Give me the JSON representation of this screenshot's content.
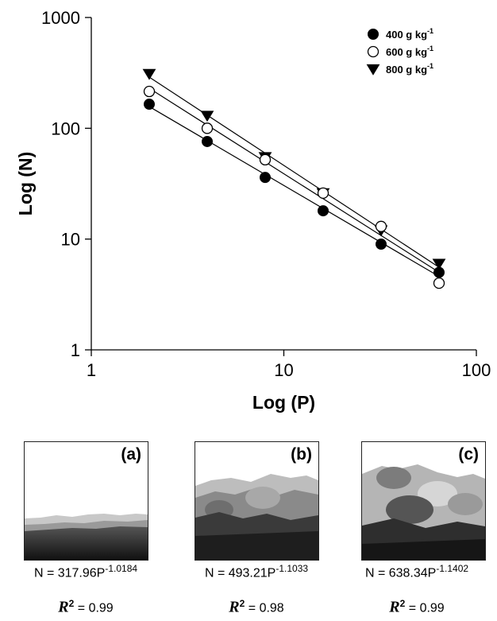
{
  "chart_data": {
    "type": "scatter",
    "xlabel": "Log (P)",
    "ylabel": "Log (N)",
    "x_scale": "log",
    "y_scale": "log",
    "xlim": [
      1,
      100
    ],
    "ylim": [
      1,
      1000
    ],
    "x_ticks": [
      "1",
      "10",
      "100"
    ],
    "y_ticks": [
      "1",
      "10",
      "100",
      "1000"
    ],
    "grid": false,
    "legend_position": "top-right",
    "series": [
      {
        "name": "400 g kg-1",
        "name_base": "400 g kg",
        "name_sup": "-1",
        "marker": "filled-circle",
        "x": [
          2,
          4,
          8,
          16,
          32,
          64
        ],
        "y": [
          165,
          76,
          36,
          18,
          9,
          5
        ],
        "fit": {
          "a": 317.96,
          "b": -1.0184
        }
      },
      {
        "name": "600 g kg-1",
        "name_base": "600 g kg",
        "name_sup": "-1",
        "marker": "open-circle",
        "x": [
          2,
          4,
          8,
          16,
          32,
          64
        ],
        "y": [
          215,
          100,
          52,
          26,
          13,
          4
        ],
        "fit": {
          "a": 493.21,
          "b": -1.1033
        }
      },
      {
        "name": "800 g kg-1",
        "name_base": "800 g kg",
        "name_sup": "-1",
        "marker": "filled-triangle-down",
        "x": [
          2,
          4,
          8,
          16,
          32,
          64
        ],
        "y": [
          310,
          130,
          55,
          26,
          12,
          6
        ],
        "fit": {
          "a": 638.34,
          "b": -1.1402
        }
      }
    ]
  },
  "panels": [
    {
      "label": "(a)",
      "eq_prefix": "N = 317.96P",
      "eq_exp": "-1.0184",
      "r2_symbol": "R",
      "r2_sup": "2",
      "r2_value": " = 0.99"
    },
    {
      "label": "(b)",
      "eq_prefix": "N = 493.21P",
      "eq_exp": "-1.1033",
      "r2_symbol": "R",
      "r2_sup": "2",
      "r2_value": " = 0.98"
    },
    {
      "label": "(c)",
      "eq_prefix": "N = 638.34P",
      "eq_exp": "-1.1402",
      "r2_symbol": "R",
      "r2_sup": "2",
      "r2_value": " = 0.99"
    }
  ]
}
